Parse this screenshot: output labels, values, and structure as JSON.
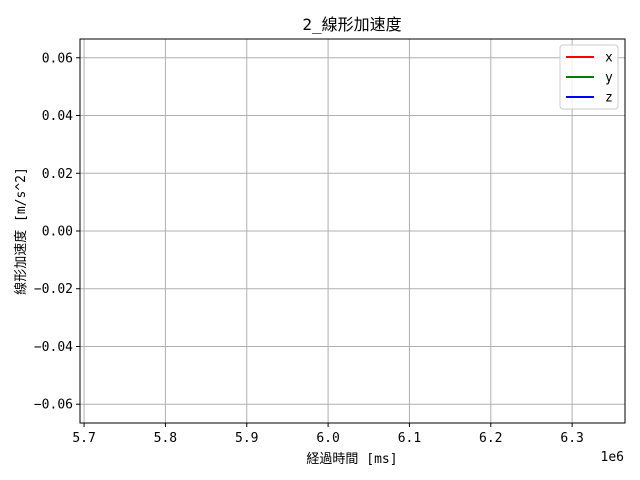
{
  "chart_data": {
    "type": "line",
    "title": "2_線形加速度",
    "xlabel": "経過時間 [ms]",
    "ylabel": "線形加速度 [m/s^2]",
    "x_offset_label": "1e6",
    "xlim": [
      5.695,
      6.365
    ],
    "ylim": [
      -0.0665,
      0.0665
    ],
    "x_ticks": [
      5.7,
      5.8,
      5.9,
      6.0,
      6.1,
      6.2,
      6.3
    ],
    "x_tick_labels": [
      "5.7",
      "5.8",
      "5.9",
      "6.0",
      "6.1",
      "6.2",
      "6.3"
    ],
    "y_ticks": [
      -0.06,
      -0.04,
      -0.02,
      0.0,
      0.02,
      0.04,
      0.06
    ],
    "y_tick_labels": [
      "−0.06",
      "−0.04",
      "−0.02",
      "0.00",
      "0.02",
      "0.04",
      "0.06"
    ],
    "grid": true,
    "legend_position": "top-right",
    "series": [
      {
        "name": "x",
        "color": "#ff0000",
        "x": [],
        "y": []
      },
      {
        "name": "y",
        "color": "#008000",
        "x": [],
        "y": []
      },
      {
        "name": "z",
        "color": "#0000ff",
        "x": [],
        "y": []
      }
    ]
  }
}
